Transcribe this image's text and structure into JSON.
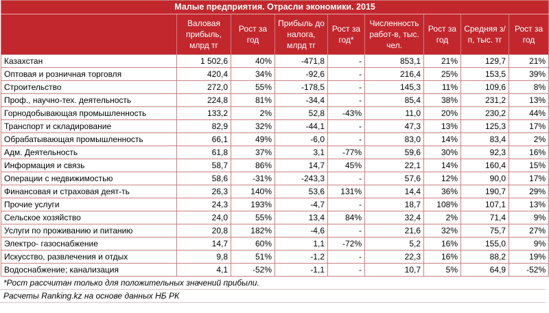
{
  "title": "Малые предприятия. Отрасли экономики. 2015",
  "headers": [
    "",
    "Валовая прибыль, млрд тг",
    "Рост за год",
    "Прибыль до налога, млрд тг",
    "Рост за год*",
    "Численность работ-в, тыс. чел.",
    "Рост за год",
    "Средняя з/п, тыс. тг",
    "Рост за год"
  ],
  "rows": [
    [
      "Казахстан",
      "1 502,6",
      "40%",
      "-471,8",
      "-",
      "853,1",
      "21%",
      "129,7",
      "21%"
    ],
    [
      "Оптовая и розничная торговля",
      "420,4",
      "34%",
      "-92,6",
      "-",
      "216,4",
      "25%",
      "153,5",
      "39%"
    ],
    [
      "Строительство",
      "272,0",
      "55%",
      "-178,5",
      "-",
      "145,3",
      "11%",
      "109,6",
      "8%"
    ],
    [
      "Проф., научно-тех. деятельность",
      "224,8",
      "81%",
      "-34,4",
      "-",
      "85,4",
      "38%",
      "231,2",
      "13%"
    ],
    [
      "Горнодобывающая промышленность",
      "133,2",
      "2%",
      "52,8",
      "-43%",
      "11,0",
      "20%",
      "230,2",
      "44%"
    ],
    [
      "Транспорт и складирование",
      "82,9",
      "32%",
      "-44,1",
      "-",
      "47,3",
      "13%",
      "125,3",
      "17%"
    ],
    [
      "Обрабатывающая промышленность",
      "66,1",
      "49%",
      "-6,0",
      "-",
      "83,0",
      "14%",
      "83,4",
      "2%"
    ],
    [
      "Адм. Деятельность",
      "61,8",
      "37%",
      "3,1",
      "-77%",
      "59,6",
      "30%",
      "92,3",
      "16%"
    ],
    [
      "Информация и связь",
      "58,7",
      "86%",
      "14,7",
      "45%",
      "22,1",
      "14%",
      "160,4",
      "15%"
    ],
    [
      "Операции с недвижимостью",
      "58,6",
      "-31%",
      "-243,3",
      "-",
      "57,6",
      "12%",
      "90,0",
      "17%"
    ],
    [
      "Финансовая и страховая деят-ть",
      "26,3",
      "140%",
      "53,6",
      "131%",
      "14,4",
      "36%",
      "190,7",
      "29%"
    ],
    [
      "Прочие услуги",
      "24,3",
      "193%",
      "-4,7",
      "-",
      "18,7",
      "108%",
      "107,1",
      "13%"
    ],
    [
      "Сельское хозяйство",
      "24,0",
      "55%",
      "13,4",
      "84%",
      "32,4",
      "2%",
      "71,4",
      "9%"
    ],
    [
      "Услуги по проживанию и питанию",
      "20,8",
      "182%",
      "-4,6",
      "-",
      "21,6",
      "32%",
      "75,7",
      "27%"
    ],
    [
      "Электро- газоснабжение",
      "14,7",
      "60%",
      "1,1",
      "-72%",
      "5,2",
      "16%",
      "155,0",
      "9%"
    ],
    [
      "Искусство, развлечения и отдых",
      "9,8",
      "51%",
      "-1,2",
      "-",
      "22,3",
      "16%",
      "88,2",
      "19%"
    ],
    [
      "Водоснабжение; канализация",
      "4,1",
      "-52%",
      "-1,1",
      "-",
      "10,7",
      "5%",
      "64,9",
      "-52%"
    ]
  ],
  "footnotes": [
    "*Рост рассчитан только для положительных значений прибыли.",
    "Расчеты Ranking.kz на основе данных НБ РК"
  ]
}
